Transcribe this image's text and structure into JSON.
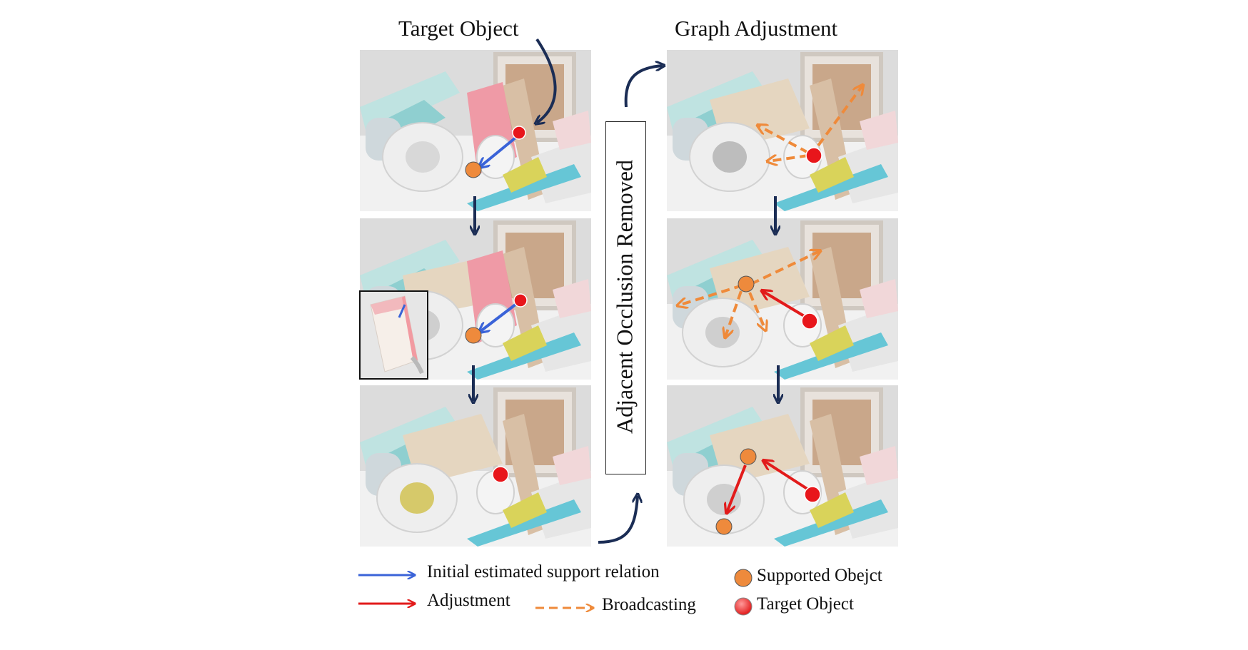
{
  "headings": {
    "left": "Target Object",
    "right": "Graph Adjustment"
  },
  "vertical_label": "Adjacent Occlusion Removed",
  "legend": {
    "initial": "Initial estimated support relation",
    "adjustment": "Adjustment",
    "broadcasting": "Broadcasting",
    "supported": "Supported Obejct",
    "target": "Target Object"
  },
  "colors": {
    "initial_arrow": "#3a63d8",
    "adjust_arrow": "#e21b1b",
    "broadcast_arrow": "#ef8a3a",
    "supported_node": "#ee8a3c",
    "target_node": "#e8161b",
    "flow_arrow": "#1b2d55"
  }
}
